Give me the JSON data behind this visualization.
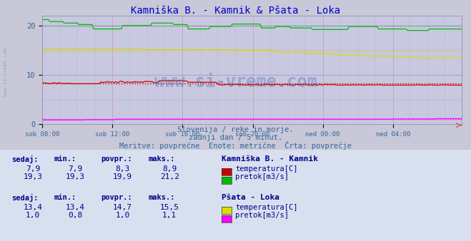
{
  "title": "Kamniška B. - Kamnik & Pšata - Loka",
  "title_color": "#0000cc",
  "title_fontsize": 10,
  "bg_color": "#c8c8d8",
  "plot_bg_color": "#c8c8e0",
  "xlabel_color": "#336699",
  "x_ticks_labels": [
    "sob 08:00",
    "sob 12:00",
    "sob 16:00",
    "sob 20:00",
    "ned 00:00",
    "ned 04:00"
  ],
  "x_ticks_pos": [
    0,
    48,
    96,
    144,
    192,
    240
  ],
  "y_ticks": [
    0,
    10,
    20
  ],
  "ylim": [
    0,
    22
  ],
  "xlim": [
    0,
    287
  ],
  "n_points": 288,
  "subtitle1": "Slovenija / reke in morje.",
  "subtitle2": "zadnji dan / 5 minut.",
  "subtitle3": "Meritve: povprečne  Enote: metrične  Črta: povprečje",
  "subtitle_color": "#336699",
  "subtitle_fontsize": 7.5,
  "watermark": "www.si-vreme.com",
  "watermark_color": "#3355aa",
  "watermark_alpha": 0.3,
  "legend_title1": "Kamniška B. - Kamnik",
  "legend_title2": "Pšata - Loka",
  "table_header": [
    "sedaj:",
    "min.:",
    "povpr.:",
    "maks.:"
  ],
  "table_color": "#0000aa",
  "kamnik_temp_sedaj": "7,9",
  "kamnik_temp_min": "7,9",
  "kamnik_temp_povpr": "8,3",
  "kamnik_temp_maks": "8,9",
  "kamnik_pretok_sedaj": "19,3",
  "kamnik_pretok_min": "19,3",
  "kamnik_pretok_povpr": "19,9",
  "kamnik_pretok_maks": "21,2",
  "psata_temp_sedaj": "13,4",
  "psata_temp_min": "13,4",
  "psata_temp_povpr": "14,7",
  "psata_temp_maks": "15,5",
  "psata_pretok_sedaj": "1,0",
  "psata_pretok_min": "0,8",
  "psata_pretok_povpr": "1,0",
  "psata_pretok_maks": "1,1",
  "color_kamnik_temp": "#cc0000",
  "color_kamnik_pretok": "#00bb00",
  "color_psata_temp": "#dddd00",
  "color_psata_pretok": "#ff00ff",
  "avg_kamnik_temp": 8.3,
  "avg_kamnik_pretok": 19.9,
  "avg_psata_temp": 14.7,
  "avg_psata_pretok": 1.0
}
